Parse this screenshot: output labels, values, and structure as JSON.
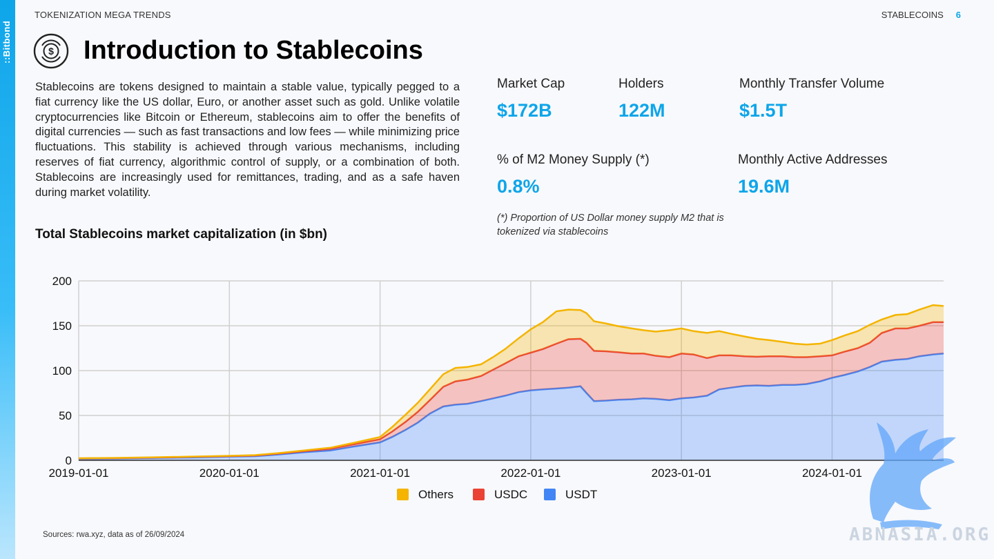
{
  "brand": {
    "name": "::Bitbond"
  },
  "header": {
    "section": "TOKENIZATION MEGA TRENDS",
    "topic": "STABLECOINS",
    "page": "6"
  },
  "title": "Introduction to Stablecoins",
  "intro": "Stablecoins are tokens designed to maintain a stable value, typically pegged to a fiat currency like the US dollar, Euro, or another asset such as gold. Unlike volatile cryptocurrencies like Bitcoin or Ethereum, stablecoins aim to offer the benefits of digital currencies — such as fast transactions and low fees — while minimizing price fluctuations. This stability is achieved through various mechanisms, including reserves of fiat currency, algorithmic control of supply, or a combination of both. Stablecoins are increasingly used for remittances, trading, and as a safe haven during market volatility.",
  "stats": [
    {
      "label": "Market Cap",
      "value": "$172B"
    },
    {
      "label": "Holders",
      "value": "122M"
    },
    {
      "label": "Monthly Transfer Volume",
      "value": "$1.5T"
    },
    {
      "label": "% of M2 Money Supply (*)",
      "value": "0.8%"
    },
    {
      "label": "Monthly Active Addresses",
      "value": "19.6M"
    }
  ],
  "footnote": "(*) Proportion of US Dollar money supply M2 that is tokenized via stablecoins",
  "chart_title": "Total Stablecoins market capitalization (in $bn)",
  "sources": "Sources: rwa.xyz, data as of 26/09/2024",
  "watermark": "ABNASIA.ORG",
  "colors": {
    "accent": "#0ea5e9",
    "others": "#f4b400",
    "usdc": "#ea4335",
    "usdt": "#4285f4"
  },
  "chart_data": {
    "type": "area",
    "stacked": true,
    "title": "Total Stablecoins market capitalization (in $bn)",
    "xlabel": "",
    "ylabel": "",
    "ylim": [
      0,
      200
    ],
    "yticks": [
      0,
      50,
      100,
      150,
      200
    ],
    "xticks": [
      "2019-01-01",
      "2020-01-01",
      "2021-01-01",
      "2022-01-01",
      "2023-01-01",
      "2024-01-01"
    ],
    "xrange": [
      2019.0,
      2024.74
    ],
    "grid": true,
    "legend_position": "bottom",
    "x": [
      2019.0,
      2019.25,
      2019.5,
      2019.75,
      2020.0,
      2020.17,
      2020.33,
      2020.5,
      2020.67,
      2020.83,
      2021.0,
      2021.08,
      2021.17,
      2021.25,
      2021.33,
      2021.42,
      2021.5,
      2021.58,
      2021.67,
      2021.75,
      2021.83,
      2021.92,
      2022.0,
      2022.08,
      2022.17,
      2022.25,
      2022.33,
      2022.37,
      2022.42,
      2022.5,
      2022.58,
      2022.67,
      2022.75,
      2022.83,
      2022.92,
      2023.0,
      2023.08,
      2023.17,
      2023.25,
      2023.33,
      2023.42,
      2023.5,
      2023.58,
      2023.67,
      2023.75,
      2023.83,
      2023.92,
      2024.0,
      2024.08,
      2024.17,
      2024.25,
      2024.33,
      2024.42,
      2024.5,
      2024.58,
      2024.67,
      2024.74
    ],
    "series": [
      {
        "name": "USDT",
        "values": [
          1.8,
          2.0,
          2.6,
          3.2,
          4.1,
          4.6,
          6.5,
          9.0,
          11.0,
          15.5,
          20.0,
          26.0,
          34.0,
          42.0,
          52.0,
          60.0,
          62.0,
          63.0,
          66.0,
          69.0,
          72.0,
          76.0,
          78.0,
          79.0,
          80.0,
          81.0,
          82.5,
          75.0,
          66.0,
          66.5,
          67.5,
          68.0,
          69.0,
          68.5,
          67.0,
          69.0,
          70.0,
          72.0,
          79.0,
          81.0,
          83.0,
          83.5,
          83.0,
          84.0,
          84.0,
          85.0,
          88.0,
          92.0,
          95.0,
          99.0,
          104.0,
          110.0,
          112.0,
          113.0,
          116.0,
          118.0,
          119.0
        ]
      },
      {
        "name": "USDC",
        "values": [
          0.3,
          0.4,
          0.5,
          0.6,
          0.5,
          0.7,
          1.0,
          1.3,
          2.0,
          2.5,
          3.5,
          6.0,
          9.0,
          12.0,
          15.0,
          22.0,
          26.0,
          27.0,
          28.0,
          32.0,
          36.0,
          40.0,
          42.0,
          45.0,
          50.0,
          54.0,
          53.0,
          56.0,
          56.0,
          55.0,
          53.0,
          51.0,
          50.0,
          48.0,
          48.0,
          50.0,
          48.0,
          42.0,
          38.0,
          36.0,
          33.0,
          32.0,
          33.0,
          32.0,
          31.0,
          30.0,
          28.0,
          25.0,
          26.0,
          26.0,
          27.0,
          32.0,
          35.0,
          34.0,
          34.0,
          36.0,
          35.0
        ]
      },
      {
        "name": "Others",
        "values": [
          0.2,
          0.3,
          0.3,
          0.3,
          0.4,
          0.5,
          0.6,
          0.8,
          1.0,
          1.6,
          2.5,
          5.0,
          8.0,
          10.0,
          12.0,
          14.0,
          15.0,
          14.0,
          13.0,
          14.0,
          16.0,
          20.0,
          26.0,
          30.0,
          36.0,
          33.0,
          32.0,
          33.0,
          33.0,
          31.0,
          29.0,
          28.0,
          26.0,
          27.0,
          30.0,
          28.0,
          26.0,
          28.0,
          27.0,
          24.0,
          22.0,
          20.0,
          18.0,
          16.0,
          15.0,
          14.0,
          14.0,
          17.0,
          18.0,
          19.0,
          20.0,
          15.0,
          15.0,
          16.0,
          18.0,
          19.0,
          18.0
        ]
      }
    ],
    "legend": [
      "Others",
      "USDC",
      "USDT"
    ]
  }
}
